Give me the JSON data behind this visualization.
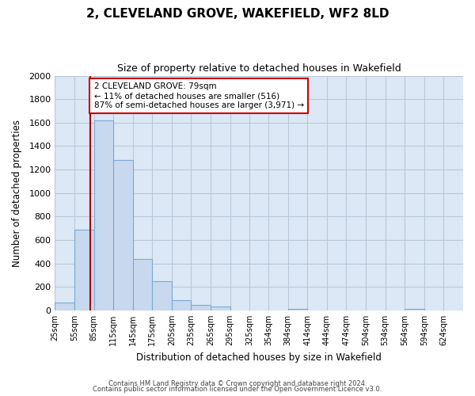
{
  "title": "2, CLEVELAND GROVE, WAKEFIELD, WF2 8LD",
  "subtitle": "Size of property relative to detached houses in Wakefield",
  "xlabel": "Distribution of detached houses by size in Wakefield",
  "ylabel": "Number of detached properties",
  "bin_labels": [
    "25sqm",
    "55sqm",
    "85sqm",
    "115sqm",
    "145sqm",
    "175sqm",
    "205sqm",
    "235sqm",
    "265sqm",
    "295sqm",
    "325sqm",
    "354sqm",
    "384sqm",
    "414sqm",
    "444sqm",
    "474sqm",
    "504sqm",
    "534sqm",
    "564sqm",
    "594sqm",
    "624sqm"
  ],
  "bar_values": [
    65,
    690,
    1620,
    1280,
    440,
    250,
    90,
    50,
    30,
    0,
    0,
    0,
    15,
    0,
    0,
    0,
    0,
    0,
    15,
    0,
    0
  ],
  "bar_color": "#c8d8ee",
  "bar_edge_color": "#7aaad0",
  "ylim": [
    0,
    2000
  ],
  "yticks": [
    0,
    200,
    400,
    600,
    800,
    1000,
    1200,
    1400,
    1600,
    1800,
    2000
  ],
  "vline_x": 79,
  "vline_color": "#aa0000",
  "annotation_title": "2 CLEVELAND GROVE: 79sqm",
  "annotation_line1": "← 11% of detached houses are smaller (516)",
  "annotation_line2": "87% of semi-detached houses are larger (3,971) →",
  "annotation_box_color": "#ffffff",
  "annotation_box_edge": "#cc0000",
  "footer_line1": "Contains HM Land Registry data © Crown copyright and database right 2024.",
  "footer_line2": "Contains public sector information licensed under the Open Government Licence v3.0.",
  "fig_background_color": "#ffffff",
  "plot_bg_color": "#dce8f5",
  "grid_color": "#b8c8d8",
  "bin_edges": [
    25,
    55,
    85,
    115,
    145,
    175,
    205,
    235,
    265,
    295,
    325,
    354,
    384,
    414,
    444,
    474,
    504,
    534,
    564,
    594,
    624,
    654
  ]
}
